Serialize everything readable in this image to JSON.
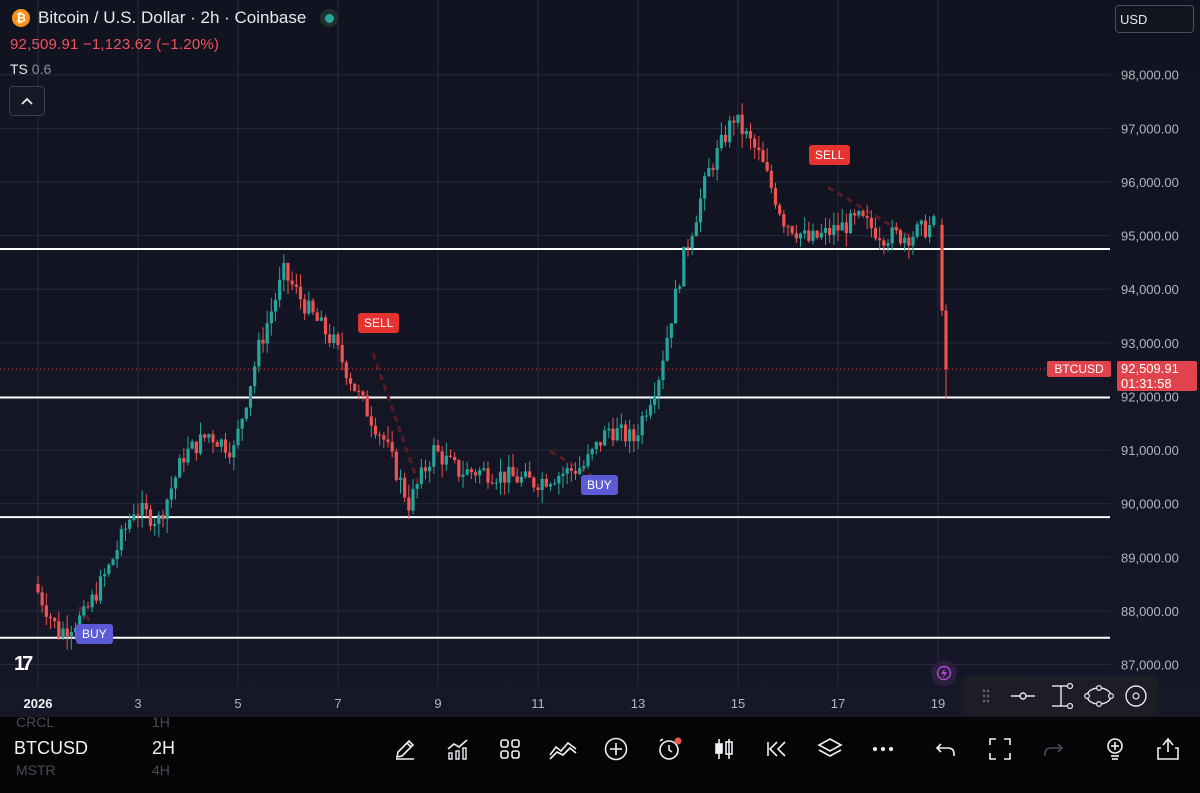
{
  "header": {
    "title": "Bitcoin / U.S. Dollar · 2h · Coinbase",
    "coin_glyph": "₿",
    "quote": "92,509.91  −1,123.62 (−1.20%)",
    "indicator_name": "TS",
    "indicator_value": "0.6",
    "currency": "USD"
  },
  "price_label": {
    "symbol": "BTCUSD",
    "price": "92,509.91",
    "countdown": "01:31:58"
  },
  "signals": {
    "sell_label": "SELL",
    "buy_label": "BUY"
  },
  "chart_data": {
    "type": "candlestick",
    "symbol": "BTCUSD",
    "interval": "2h",
    "exchange": "Coinbase",
    "x_ticks": [
      "2026",
      "3",
      "5",
      "7",
      "9",
      "11",
      "13",
      "15",
      "17",
      "19"
    ],
    "y_ticks": [
      "87,000.00",
      "88,000.00",
      "89,000.00",
      "90,000.00",
      "91,000.00",
      "92,000.00",
      "93,000.00",
      "94,000.00",
      "95,000.00",
      "96,000.00",
      "97,000.00",
      "98,000.00"
    ],
    "ylim": [
      86600,
      99300
    ],
    "last_price": 92509.91,
    "horizontal_levels": [
      94750,
      91980,
      89750,
      87500
    ],
    "signals": [
      {
        "type": "BUY",
        "date": "Jan 2",
        "price": 87500
      },
      {
        "type": "SELL",
        "date": "Jan 7",
        "price": 92800
      },
      {
        "type": "BUY",
        "date": "Jan 12",
        "price": 90400
      },
      {
        "type": "SELL",
        "date": "Jan 16",
        "price": 95900
      }
    ],
    "price_path": [
      {
        "date": "Jan 1",
        "price": 88500
      },
      {
        "date": "Jan 1.5",
        "price": 87600
      },
      {
        "date": "Jan 2",
        "price": 87900
      },
      {
        "date": "Jan 2.5",
        "price": 88800
      },
      {
        "date": "Jan 3",
        "price": 89900
      },
      {
        "date": "Jan 3.5",
        "price": 89700
      },
      {
        "date": "Jan 4",
        "price": 90900
      },
      {
        "date": "Jan 4.5",
        "price": 91300
      },
      {
        "date": "Jan 5",
        "price": 91000
      },
      {
        "date": "Jan 5.5",
        "price": 92900
      },
      {
        "date": "Jan 6",
        "price": 94300
      },
      {
        "date": "Jan 6.5",
        "price": 93600
      },
      {
        "date": "Jan 7",
        "price": 93000
      },
      {
        "date": "Jan 7.5",
        "price": 92000
      },
      {
        "date": "Jan 8",
        "price": 91200
      },
      {
        "date": "Jan 8.5",
        "price": 90000
      },
      {
        "date": "Jan 9",
        "price": 91000
      },
      {
        "date": "Jan 9.5",
        "price": 90600
      },
      {
        "date": "Jan 10",
        "price": 90600
      },
      {
        "date": "Jan 11",
        "price": 90400
      },
      {
        "date": "Jan 12",
        "price": 90700
      },
      {
        "date": "Jan 12.5",
        "price": 91400
      },
      {
        "date": "Jan 13",
        "price": 91200
      },
      {
        "date": "Jan 13.5",
        "price": 92400
      },
      {
        "date": "Jan 14",
        "price": 94600
      },
      {
        "date": "Jan 14.5",
        "price": 96200
      },
      {
        "date": "Jan 15",
        "price": 97200
      },
      {
        "date": "Jan 15.5",
        "price": 96500
      },
      {
        "date": "Jan 16",
        "price": 95300
      },
      {
        "date": "Jan 16.5",
        "price": 94900
      },
      {
        "date": "Jan 17",
        "price": 95100
      },
      {
        "date": "Jan 17.5",
        "price": 95300
      },
      {
        "date": "Jan 18",
        "price": 95000
      },
      {
        "date": "Jan 18.5",
        "price": 95000
      },
      {
        "date": "Jan 19",
        "price": 95200
      },
      {
        "date": "Jan 19.1",
        "price": 92510
      }
    ]
  },
  "toolbar": {
    "symbol": "BTCUSD",
    "interval": "2H",
    "ghost_top_symbol": "CRCL",
    "ghost_top_interval": "1H",
    "ghost_bottom_symbol": "MSTR",
    "ghost_bottom_interval": "4H",
    "icons": [
      "pen-icon",
      "indicators-icon",
      "layouts-icon",
      "strategy-icon",
      "add-icon",
      "alert-clock-icon",
      "candles-icon",
      "replay-icon",
      "layers-icon",
      "more-icon",
      "undo-icon",
      "fullscreen-icon",
      "redo-icon",
      "idea-icon",
      "share-icon"
    ]
  },
  "colors": {
    "up": "#26a69a",
    "down": "#ef5350",
    "background": "#131522",
    "level_line": "#ffffff",
    "price_line": "#e0434c",
    "sell_tag": "#e5342f",
    "buy_tag": "#5b5bd6"
  }
}
